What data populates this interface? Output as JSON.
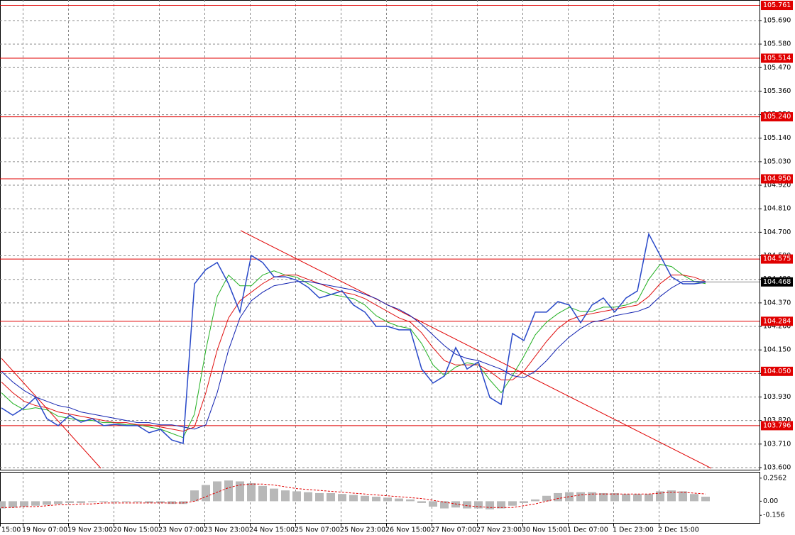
{
  "chart_data": {
    "type": "line",
    "ylim": [
      103.59,
      105.786
    ],
    "yticks": [
      {
        "value": 103.6,
        "label": "103.600"
      },
      {
        "value": 103.71,
        "label": "103.710"
      },
      {
        "value": 103.82,
        "label": "103.820"
      },
      {
        "value": 103.93,
        "label": "103.930"
      },
      {
        "value": 104.04,
        "label": "104.040"
      },
      {
        "value": 104.15,
        "label": "104.150"
      },
      {
        "value": 104.26,
        "label": "104.260"
      },
      {
        "value": 104.37,
        "label": "104.370"
      },
      {
        "value": 104.48,
        "label": "104.480"
      },
      {
        "value": 104.59,
        "label": "104.590"
      },
      {
        "value": 104.7,
        "label": "104.700"
      },
      {
        "value": 104.81,
        "label": "104.810"
      },
      {
        "value": 104.92,
        "label": "104.920"
      },
      {
        "value": 105.03,
        "label": "105.030"
      },
      {
        "value": 105.14,
        "label": "105.140"
      },
      {
        "value": 105.25,
        "label": "105.250"
      },
      {
        "value": 105.36,
        "label": "105.360"
      },
      {
        "value": 105.47,
        "label": "105.470"
      },
      {
        "value": 105.58,
        "label": "105.580"
      },
      {
        "value": 105.69,
        "label": "105.690"
      }
    ],
    "grid": true,
    "time_labels": [
      "15:00",
      "19 Nov 07:00",
      "19 Nov 23:00",
      "20 Nov 15:00",
      "23 Nov 07:00",
      "23 Nov 23:00",
      "24 Nov 15:00",
      "25 Nov 07:00",
      "25 Nov 23:00",
      "26 Nov 15:00",
      "27 Nov 07:00",
      "27 Nov 23:00",
      "30 Nov 15:00",
      "1 Dec 07:00",
      "1 Dec 23:00",
      "2 Dec 15:00"
    ],
    "series": [
      {
        "color": "#2848c8",
        "values": [
          103.879,
          103.845,
          103.879,
          103.928,
          103.829,
          103.796,
          103.845,
          103.812,
          103.829,
          103.796,
          103.802,
          103.796,
          103.796,
          103.763,
          103.779,
          103.729,
          103.713,
          104.459,
          104.526,
          104.559,
          104.459,
          104.327,
          104.592,
          104.559,
          104.492,
          104.492,
          104.476,
          104.443,
          104.393,
          104.409,
          104.426,
          104.36,
          104.327,
          104.26,
          104.26,
          104.244,
          104.244,
          104.061,
          103.995,
          104.028,
          104.161,
          104.061,
          104.094,
          103.928,
          103.895,
          104.227,
          104.194,
          104.327,
          104.327,
          104.376,
          104.36,
          104.277,
          104.36,
          104.393,
          104.327,
          104.393,
          104.426,
          104.692,
          104.592,
          104.492,
          104.459,
          104.459,
          104.466
        ]
      },
      {
        "color": "#22b022",
        "values": [
          103.95,
          103.9,
          103.87,
          103.88,
          103.87,
          103.84,
          103.83,
          103.82,
          103.82,
          103.81,
          103.81,
          103.8,
          103.8,
          103.79,
          103.78,
          103.76,
          103.74,
          103.85,
          104.15,
          104.4,
          104.5,
          104.45,
          104.45,
          104.5,
          104.52,
          104.5,
          104.49,
          104.46,
          104.43,
          104.41,
          104.4,
          104.39,
          104.36,
          104.31,
          104.28,
          104.26,
          104.25,
          104.18,
          104.08,
          104.03,
          104.07,
          104.09,
          104.08,
          104.01,
          103.95,
          104.03,
          104.12,
          104.22,
          104.28,
          104.32,
          104.35,
          104.33,
          104.33,
          104.35,
          104.35,
          104.36,
          104.38,
          104.48,
          104.55,
          104.54,
          104.5,
          104.47,
          104.46
        ]
      },
      {
        "color": "#e01010",
        "values": [
          104.0,
          103.95,
          103.91,
          103.89,
          103.88,
          103.86,
          103.85,
          103.84,
          103.83,
          103.82,
          103.81,
          103.81,
          103.8,
          103.8,
          103.79,
          103.78,
          103.77,
          103.79,
          103.95,
          104.15,
          104.3,
          104.38,
          104.42,
          104.46,
          104.49,
          104.5,
          104.5,
          104.48,
          104.46,
          104.44,
          104.42,
          104.41,
          104.39,
          104.36,
          104.33,
          104.3,
          104.28,
          104.23,
          104.16,
          104.1,
          104.08,
          104.08,
          104.08,
          104.05,
          104.01,
          104.01,
          104.05,
          104.12,
          104.19,
          104.25,
          104.29,
          104.31,
          104.32,
          104.33,
          104.34,
          104.35,
          104.36,
          104.4,
          104.46,
          104.5,
          104.5,
          104.49,
          104.47
        ]
      },
      {
        "color": "#1020b0",
        "values": [
          104.05,
          104.0,
          103.96,
          103.93,
          103.91,
          103.89,
          103.88,
          103.86,
          103.85,
          103.84,
          103.83,
          103.82,
          103.81,
          103.81,
          103.8,
          103.8,
          103.79,
          103.78,
          103.8,
          103.95,
          104.15,
          104.3,
          104.38,
          104.42,
          104.45,
          104.46,
          104.47,
          104.47,
          104.46,
          104.45,
          104.44,
          104.43,
          104.41,
          104.39,
          104.36,
          104.34,
          104.31,
          104.27,
          104.22,
          104.17,
          104.13,
          104.11,
          104.1,
          104.08,
          104.06,
          104.03,
          104.02,
          104.05,
          104.1,
          104.16,
          104.21,
          104.25,
          104.28,
          104.29,
          104.31,
          104.32,
          104.33,
          104.35,
          104.4,
          104.44,
          104.47,
          104.47,
          104.47
        ]
      }
    ],
    "levels": [
      {
        "value": 105.761,
        "label": "105.761"
      },
      {
        "value": 105.514,
        "label": "105.514"
      },
      {
        "value": 105.24,
        "label": "105.240"
      },
      {
        "value": 104.95,
        "label": "104.950"
      },
      {
        "value": 104.575,
        "label": "104.575"
      },
      {
        "value": 104.284,
        "label": "104.284"
      },
      {
        "value": 104.05,
        "label": "104.050"
      },
      {
        "value": 103.796,
        "label": "103.796"
      }
    ],
    "level_color": "#e00000",
    "current": {
      "value": 104.468,
      "label": "104.468"
    },
    "trendlines": [
      {
        "x": [
          21.06,
          62.5
        ],
        "values": [
          104.708,
          103.597
        ]
      },
      {
        "x": [
          0,
          8.75
        ],
        "values": [
          104.111,
          103.597
        ]
      }
    ],
    "indicator": {
      "type": "histogram",
      "color": "#b8b8b8",
      "ylim": [
        -0.241,
        0.318
      ],
      "yticks": [
        0.2562,
        {
          "value": 0,
          "label": "0.00"
        },
        -0.156
      ],
      "values": [
        -0.08,
        -0.07,
        -0.06,
        -0.05,
        -0.04,
        -0.03,
        -0.02,
        -0.02,
        -0.01,
        -0.01,
        -0.01,
        -0.01,
        -0.01,
        -0.02,
        -0.02,
        -0.03,
        -0.03,
        0.12,
        0.18,
        0.22,
        0.23,
        0.22,
        0.2,
        0.17,
        0.14,
        0.12,
        0.11,
        0.1,
        0.09,
        0.09,
        0.08,
        0.07,
        0.06,
        0.05,
        0.04,
        0.03,
        0.02,
        -0.02,
        -0.06,
        -0.08,
        -0.07,
        -0.08,
        -0.08,
        -0.09,
        -0.08,
        -0.05,
        -0.02,
        0.02,
        0.06,
        0.09,
        0.1,
        0.1,
        0.1,
        0.09,
        0.09,
        0.08,
        0.08,
        0.08,
        0.11,
        0.12,
        0.11,
        0.08,
        0.05
      ],
      "signal": {
        "color": "#e00000",
        "values": [
          -0.07,
          -0.07,
          -0.06,
          -0.06,
          -0.05,
          -0.04,
          -0.04,
          -0.03,
          -0.03,
          -0.02,
          -0.02,
          -0.02,
          -0.02,
          -0.02,
          -0.02,
          -0.02,
          -0.02,
          0.0,
          0.05,
          0.1,
          0.15,
          0.18,
          0.19,
          0.19,
          0.18,
          0.16,
          0.14,
          0.13,
          0.12,
          0.11,
          0.1,
          0.09,
          0.08,
          0.07,
          0.06,
          0.05,
          0.04,
          0.03,
          0.01,
          -0.01,
          -0.03,
          -0.05,
          -0.06,
          -0.07,
          -0.07,
          -0.07,
          -0.05,
          -0.03,
          0.0,
          0.03,
          0.05,
          0.07,
          0.08,
          0.08,
          0.08,
          0.08,
          0.08,
          0.08,
          0.09,
          0.1,
          0.1,
          0.09,
          0.08
        ]
      }
    }
  }
}
